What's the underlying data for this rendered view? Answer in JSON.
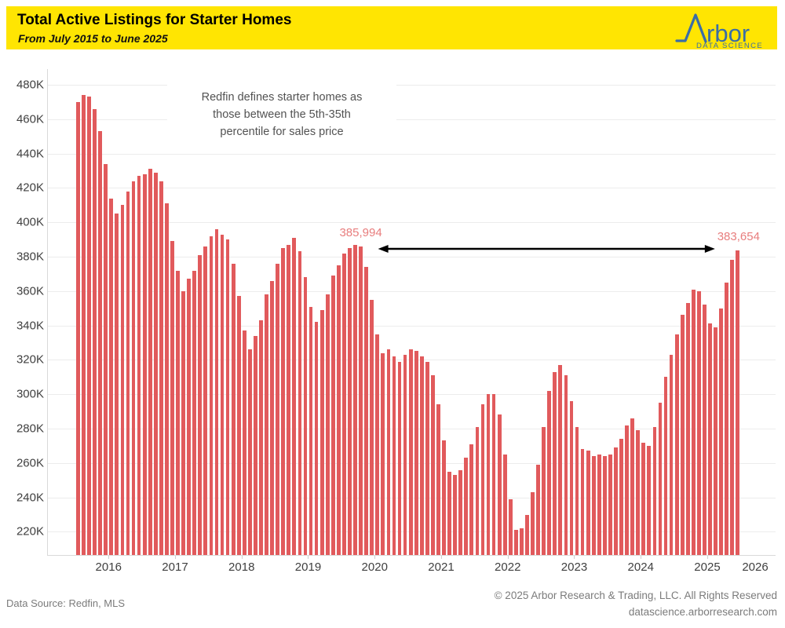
{
  "header": {
    "title": "Total Active Listings for Starter Homes",
    "subtitle": "From July 2015 to June 2025",
    "logo": {
      "name": "Arbor",
      "wordmark_tail": "rbor",
      "tagline": "DATA SCIENCE",
      "color": "#3a6da6"
    }
  },
  "note": {
    "lines": [
      "Redfin defines starter homes as",
      "those between the 5th-35th",
      "percentile for sales price"
    ]
  },
  "chart_data": {
    "type": "bar",
    "title": "Total Active Listings for Starter Homes",
    "period": "July 2015 to June 2025",
    "unit": "active listings",
    "bar_color": "#e15a5c",
    "grid": true,
    "ylim": [
      206500,
      490000
    ],
    "y_ticks": [
      "480K",
      "460K",
      "440K",
      "420K",
      "400K",
      "380K",
      "360K",
      "340K",
      "320K",
      "300K",
      "280K",
      "260K",
      "240K",
      "220K"
    ],
    "y_tick_values": [
      480000,
      460000,
      440000,
      420000,
      400000,
      380000,
      360000,
      340000,
      320000,
      300000,
      280000,
      260000,
      240000,
      220000
    ],
    "x_tick_years": [
      "2016",
      "2017",
      "2018",
      "2019",
      "2020",
      "2021",
      "2022",
      "2023",
      "2024",
      "2025",
      "2026"
    ],
    "x": [
      "2015-07",
      "2015-08",
      "2015-09",
      "2015-10",
      "2015-11",
      "2015-12",
      "2016-01",
      "2016-02",
      "2016-03",
      "2016-04",
      "2016-05",
      "2016-06",
      "2016-07",
      "2016-08",
      "2016-09",
      "2016-10",
      "2016-11",
      "2016-12",
      "2017-01",
      "2017-02",
      "2017-03",
      "2017-04",
      "2017-05",
      "2017-06",
      "2017-07",
      "2017-08",
      "2017-09",
      "2017-10",
      "2017-11",
      "2017-12",
      "2018-01",
      "2018-02",
      "2018-03",
      "2018-04",
      "2018-05",
      "2018-06",
      "2018-07",
      "2018-08",
      "2018-09",
      "2018-10",
      "2018-11",
      "2018-12",
      "2019-01",
      "2019-02",
      "2019-03",
      "2019-04",
      "2019-05",
      "2019-06",
      "2019-07",
      "2019-08",
      "2019-09",
      "2019-10",
      "2019-11",
      "2019-12",
      "2020-01",
      "2020-02",
      "2020-03",
      "2020-04",
      "2020-05",
      "2020-06",
      "2020-07",
      "2020-08",
      "2020-09",
      "2020-10",
      "2020-11",
      "2020-12",
      "2021-01",
      "2021-02",
      "2021-03",
      "2021-04",
      "2021-05",
      "2021-06",
      "2021-07",
      "2021-08",
      "2021-09",
      "2021-10",
      "2021-11",
      "2021-12",
      "2022-01",
      "2022-02",
      "2022-03",
      "2022-04",
      "2022-05",
      "2022-06",
      "2022-07",
      "2022-08",
      "2022-09",
      "2022-10",
      "2022-11",
      "2022-12",
      "2023-01",
      "2023-02",
      "2023-03",
      "2023-04",
      "2023-05",
      "2023-06",
      "2023-07",
      "2023-08",
      "2023-09",
      "2023-10",
      "2023-11",
      "2023-12",
      "2024-01",
      "2024-02",
      "2024-03",
      "2024-04",
      "2024-05",
      "2024-06",
      "2024-07",
      "2024-08",
      "2024-09",
      "2024-10",
      "2024-11",
      "2024-12",
      "2025-01",
      "2025-02",
      "2025-03",
      "2025-04",
      "2025-05",
      "2025-06"
    ],
    "values": [
      470000,
      474000,
      473000,
      466000,
      453000,
      434000,
      414000,
      405000,
      410000,
      418000,
      424000,
      427000,
      428000,
      431000,
      429000,
      424000,
      411000,
      389000,
      372000,
      360000,
      367000,
      372000,
      381000,
      386000,
      392000,
      396000,
      393000,
      390000,
      376000,
      357000,
      337000,
      326000,
      334000,
      343000,
      358000,
      366000,
      376000,
      385000,
      387000,
      391000,
      383000,
      368000,
      351000,
      342000,
      349000,
      358000,
      369000,
      375000,
      382000,
      385000,
      387000,
      385994,
      374000,
      355000,
      335000,
      324000,
      326000,
      322000,
      319000,
      323000,
      326000,
      325000,
      322000,
      319000,
      311000,
      294000,
      273000,
      255000,
      253000,
      256000,
      263000,
      271000,
      281000,
      294000,
      300000,
      300000,
      288000,
      265000,
      239000,
      221000,
      222000,
      230000,
      243000,
      259000,
      281000,
      302000,
      313000,
      317000,
      311000,
      296000,
      281000,
      268000,
      267000,
      264000,
      265000,
      264000,
      265000,
      269000,
      274000,
      282000,
      286000,
      279000,
      272000,
      270000,
      281000,
      295000,
      310000,
      323000,
      335000,
      346000,
      353000,
      361000,
      360000,
      352000,
      341000,
      339000,
      350000,
      365000,
      378000,
      383654
    ],
    "annotations": [
      {
        "label": "385,994",
        "month": "2019-10",
        "value": 385994
      },
      {
        "label": "383,654",
        "month": "2025-06",
        "value": 383654
      }
    ],
    "legend": false
  },
  "footer": {
    "source": "Data Source: Redfin, MLS",
    "copyright": "© 2025 Arbor Research & Trading, LLC. All Rights Reserved",
    "website": "datascience.arborresearch.com"
  }
}
